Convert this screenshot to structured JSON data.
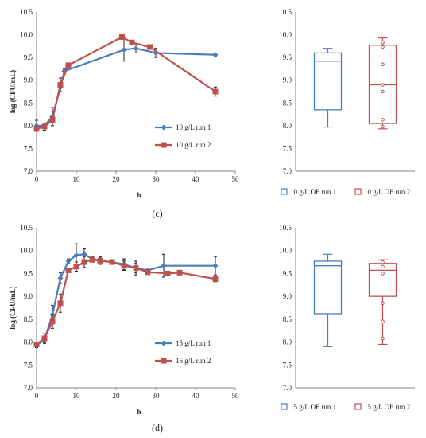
{
  "panel_labels": [
    "(c)",
    "(d)"
  ],
  "colors": {
    "run1": "#4a7ebb",
    "run2": "#c0504d",
    "axis": "#808080",
    "error": "#222222"
  },
  "chart_data": [
    {
      "id": "c_line",
      "type": "line",
      "xlabel": "h",
      "ylabel": "log (CFU/mL)",
      "xlim": [
        0,
        50
      ],
      "ylim": [
        7.0,
        10.5
      ],
      "xticks": [
        "0",
        "10",
        "20",
        "30",
        "40",
        "50"
      ],
      "yticks": [
        "7.0",
        "7.5",
        "8.0",
        "8.5",
        "9.0",
        "9.5",
        "10.0",
        "10.5"
      ],
      "legend_position": "bottom-right",
      "series": [
        {
          "name": "10 g/L run 1",
          "marker": "diamond",
          "points": [
            {
              "x": 0,
              "y": 8.0,
              "err": 0.12
            },
            {
              "x": 2,
              "y": 8.0,
              "err": 0.06
            },
            {
              "x": 4,
              "y": 8.2,
              "err": 0.2
            },
            {
              "x": 6,
              "y": 8.85,
              "err": 0.1
            },
            {
              "x": 7,
              "y": 9.2,
              "err": 0.05
            },
            {
              "x": 22,
              "y": 9.67,
              "err": 0.25
            },
            {
              "x": 25,
              "y": 9.7,
              "err": 0.1
            },
            {
              "x": 30,
              "y": 9.6,
              "err": 0.1
            },
            {
              "x": 45,
              "y": 9.56,
              "err": 0.03
            }
          ]
        },
        {
          "name": "10 g/L run 2",
          "marker": "square",
          "points": [
            {
              "x": 0,
              "y": 7.93,
              "err": 0.05
            },
            {
              "x": 2,
              "y": 7.98,
              "err": 0.08
            },
            {
              "x": 4,
              "y": 8.13,
              "err": 0.06
            },
            {
              "x": 6,
              "y": 8.9,
              "err": 0.15
            },
            {
              "x": 8,
              "y": 9.33,
              "err": 0.04
            },
            {
              "x": 21.5,
              "y": 9.95,
              "err": 0.05
            },
            {
              "x": 24,
              "y": 9.83,
              "err": 0.05
            },
            {
              "x": 28.5,
              "y": 9.73,
              "err": 0.04
            },
            {
              "x": 45,
              "y": 8.75,
              "err": 0.1
            }
          ]
        }
      ]
    },
    {
      "id": "c_box",
      "type": "box",
      "ylim": [
        7.0,
        10.5
      ],
      "yticks": [
        "7.0",
        "7.5",
        "8.0",
        "8.5",
        "9.0",
        "9.5",
        "10.0",
        "10.5"
      ],
      "legend_position": "bottom",
      "series": [
        {
          "name": "10 g/L OF run 1",
          "min": 7.97,
          "q1": 8.35,
          "median": 9.42,
          "q3": 9.6,
          "max": 9.7,
          "outliers": []
        },
        {
          "name": "10 g/L OF run 2",
          "min": 7.93,
          "q1": 8.05,
          "median": 8.9,
          "q3": 9.77,
          "max": 9.93,
          "outliers": [
            9.83,
            9.73,
            9.35,
            8.9,
            8.75,
            8.13,
            7.98
          ]
        }
      ]
    },
    {
      "id": "d_line",
      "type": "line",
      "xlabel": "h",
      "ylabel": "log (CFU/mL)",
      "xlim": [
        0,
        50
      ],
      "ylim": [
        7.0,
        10.5
      ],
      "xticks": [
        "0",
        "10",
        "20",
        "30",
        "40",
        "50"
      ],
      "yticks": [
        "7.0",
        "7.5",
        "8.0",
        "8.5",
        "9.0",
        "9.5",
        "10.0",
        "10.5"
      ],
      "legend_position": "bottom-right",
      "series": [
        {
          "name": "15 g/L run 1",
          "marker": "diamond",
          "points": [
            {
              "x": 0,
              "y": 7.93,
              "err": 0.05
            },
            {
              "x": 2,
              "y": 8.05,
              "err": 0.08
            },
            {
              "x": 4,
              "y": 8.6,
              "err": 0.2
            },
            {
              "x": 6,
              "y": 9.4,
              "err": 0.12
            },
            {
              "x": 8,
              "y": 9.77,
              "err": 0.05
            },
            {
              "x": 10,
              "y": 9.9,
              "err": 0.25
            },
            {
              "x": 12,
              "y": 9.92,
              "err": 0.12
            },
            {
              "x": 14,
              "y": 9.82,
              "err": 0.05
            },
            {
              "x": 16,
              "y": 9.78,
              "err": 0.08
            },
            {
              "x": 19,
              "y": 9.75,
              "err": 0.05
            },
            {
              "x": 22,
              "y": 9.7,
              "err": 0.12
            },
            {
              "x": 25,
              "y": 9.62,
              "err": 0.15
            },
            {
              "x": 28,
              "y": 9.57,
              "err": 0.05
            },
            {
              "x": 32,
              "y": 9.67,
              "err": 0.25
            },
            {
              "x": 45,
              "y": 9.67,
              "err": 0.2
            }
          ]
        },
        {
          "name": "15 g/L run 2",
          "marker": "square",
          "points": [
            {
              "x": 0,
              "y": 7.95,
              "err": 0.05
            },
            {
              "x": 2,
              "y": 8.08,
              "err": 0.1
            },
            {
              "x": 4,
              "y": 8.45,
              "err": 0.15
            },
            {
              "x": 6,
              "y": 8.85,
              "err": 0.2
            },
            {
              "x": 8,
              "y": 9.57,
              "err": 0.05
            },
            {
              "x": 10,
              "y": 9.65,
              "err": 0.1
            },
            {
              "x": 12,
              "y": 9.75,
              "err": 0.12
            },
            {
              "x": 14,
              "y": 9.8,
              "err": 0.05
            },
            {
              "x": 16,
              "y": 9.78,
              "err": 0.08
            },
            {
              "x": 19,
              "y": 9.75,
              "err": 0.05
            },
            {
              "x": 22,
              "y": 9.67,
              "err": 0.1
            },
            {
              "x": 25,
              "y": 9.62,
              "err": 0.1
            },
            {
              "x": 28,
              "y": 9.53,
              "err": 0.05
            },
            {
              "x": 33,
              "y": 9.5,
              "err": 0.05
            },
            {
              "x": 36,
              "y": 9.52,
              "err": 0.04
            },
            {
              "x": 45,
              "y": 9.38,
              "err": 0.06
            }
          ]
        }
      ]
    },
    {
      "id": "d_box",
      "type": "box",
      "ylim": [
        7.0,
        10.5
      ],
      "yticks": [
        "7.0",
        "7.5",
        "8.0",
        "8.5",
        "9.0",
        "9.5",
        "10.0",
        "10.5"
      ],
      "legend_position": "bottom",
      "series": [
        {
          "name": "15 g/L OF run 1",
          "min": 7.9,
          "q1": 8.62,
          "median": 9.67,
          "q3": 9.77,
          "max": 9.92,
          "outliers": []
        },
        {
          "name": "15 g/L OF run 2",
          "min": 7.95,
          "q1": 9.0,
          "median": 9.57,
          "q3": 9.72,
          "max": 9.8,
          "outliers": [
            9.75,
            9.65,
            9.5,
            8.85,
            8.45,
            8.08
          ]
        }
      ]
    }
  ]
}
